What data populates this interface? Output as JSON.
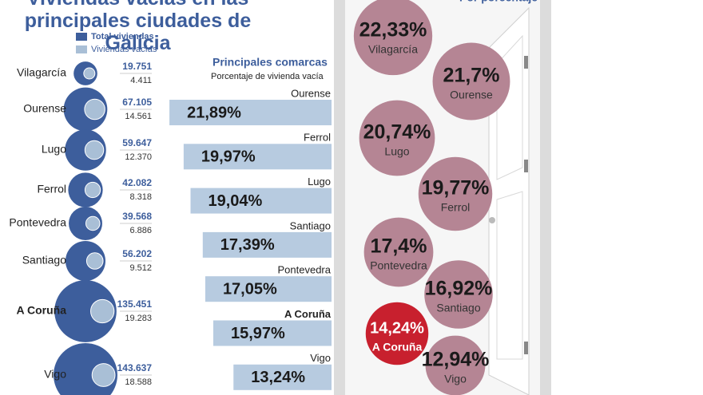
{
  "chart_data": [
    {
      "type": "bubble",
      "title": "Viviendas vacías en las principales ciudades de Galicia",
      "categories": [
        "Vilagarcía",
        "Ourense",
        "Lugo",
        "Ferrol",
        "Pontevedra",
        "Santiago",
        "A Coruña",
        "Vigo"
      ],
      "series": [
        {
          "name": "Total viviendas",
          "color": "#3d5e9c",
          "values": [
            19751,
            67105,
            59647,
            42082,
            39568,
            56202,
            135451,
            143637
          ],
          "value_labels": [
            "19.751",
            "67.105",
            "59.647",
            "42.082",
            "39.568",
            "56.202",
            "135.451",
            "143.637"
          ]
        },
        {
          "name": "Viviendas vacías",
          "color": "#a9bfd6",
          "values": [
            4411,
            14561,
            12370,
            8318,
            6886,
            9512,
            19283,
            18588
          ],
          "value_labels": [
            "4.411",
            "14.561",
            "12.370",
            "8.318",
            "6.886",
            "9.512",
            "19.283",
            "18.588"
          ]
        }
      ]
    },
    {
      "type": "bar",
      "title": "Principales comarcas",
      "subtitle": "Porcentaje de vivienda vacía",
      "categories": [
        "Ourense",
        "Ferrol",
        "Lugo",
        "Santiago",
        "Pontevedra",
        "A Coruña",
        "Vigo"
      ],
      "values": [
        21.89,
        19.97,
        19.04,
        17.39,
        17.05,
        15.97,
        13.24
      ],
      "value_labels": [
        "21,89%",
        "19,97%",
        "19,04%",
        "17,39%",
        "17,05%",
        "15,97%",
        "13,24%"
      ],
      "color": "#b7cbe0"
    },
    {
      "type": "circles",
      "title": "Por porcentaje",
      "categories": [
        "Vilagarcía",
        "Ourense",
        "Lugo",
        "Ferrol",
        "Pontevedra",
        "Santiago",
        "A Coruña",
        "Vigo"
      ],
      "values": [
        22.33,
        21.7,
        20.74,
        19.77,
        17.4,
        16.92,
        14.24,
        12.94
      ],
      "value_labels": [
        "22,33%",
        "21,7%",
        "20,74%",
        "19,77%",
        "17,4%",
        "16,92%",
        "14,24%",
        "12,94%"
      ],
      "colors": [
        "#b58594",
        "#b58594",
        "#b58594",
        "#b58594",
        "#b58594",
        "#b58594",
        "#c8202e",
        "#b58594"
      ]
    }
  ]
}
